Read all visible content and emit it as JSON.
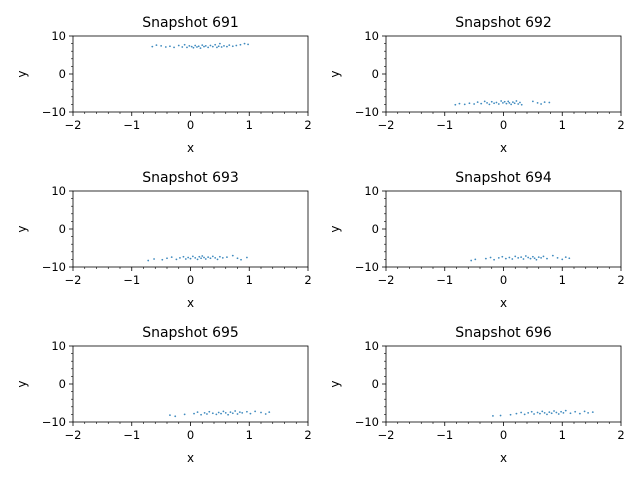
{
  "chart_data": [
    {
      "type": "scatter",
      "title": "Snapshot 691",
      "xlabel": "x",
      "ylabel": "y",
      "xlim": [
        -2,
        2
      ],
      "ylim": [
        -10,
        10
      ],
      "xticks": [
        "−2",
        "−1",
        "0",
        "1",
        "2"
      ],
      "yticks": [
        "−10",
        "0",
        "10"
      ],
      "marker_color": "#1f77b4",
      "points": [
        [
          -0.65,
          7.2
        ],
        [
          -0.58,
          7.6
        ],
        [
          -0.5,
          7.4
        ],
        [
          -0.42,
          7.1
        ],
        [
          -0.35,
          7.3
        ],
        [
          -0.28,
          7.0
        ],
        [
          -0.2,
          7.5
        ],
        [
          -0.14,
          7.1
        ],
        [
          -0.1,
          7.7
        ],
        [
          -0.06,
          7.0
        ],
        [
          -0.02,
          7.4
        ],
        [
          0.02,
          7.2
        ],
        [
          0.05,
          6.9
        ],
        [
          0.08,
          7.5
        ],
        [
          0.11,
          7.1
        ],
        [
          0.14,
          7.3
        ],
        [
          0.17,
          6.8
        ],
        [
          0.2,
          7.6
        ],
        [
          0.23,
          7.2
        ],
        [
          0.26,
          7.4
        ],
        [
          0.3,
          7.0
        ],
        [
          0.34,
          7.5
        ],
        [
          0.38,
          7.2
        ],
        [
          0.42,
          7.7
        ],
        [
          0.45,
          7.0
        ],
        [
          0.48,
          7.3
        ],
        [
          0.5,
          8.0
        ],
        [
          0.53,
          7.1
        ],
        [
          0.57,
          7.4
        ],
        [
          0.62,
          7.2
        ],
        [
          0.66,
          7.6
        ],
        [
          0.72,
          7.3
        ],
        [
          0.78,
          7.5
        ],
        [
          0.85,
          7.7
        ],
        [
          0.92,
          8.0
        ],
        [
          0.98,
          7.8
        ]
      ]
    },
    {
      "type": "scatter",
      "title": "Snapshot 692",
      "xlabel": "x",
      "ylabel": "y",
      "xlim": [
        -2,
        2
      ],
      "ylim": [
        -10,
        10
      ],
      "xticks": [
        "−2",
        "−1",
        "0",
        "1",
        "2"
      ],
      "yticks": [
        "−10",
        "0",
        "10"
      ],
      "marker_color": "#1f77b4",
      "points": [
        [
          -0.82,
          -8.1
        ],
        [
          -0.75,
          -7.8
        ],
        [
          -0.66,
          -8.0
        ],
        [
          -0.58,
          -7.7
        ],
        [
          -0.5,
          -7.9
        ],
        [
          -0.44,
          -7.4
        ],
        [
          -0.38,
          -7.8
        ],
        [
          -0.32,
          -7.2
        ],
        [
          -0.28,
          -7.6
        ],
        [
          -0.24,
          -8.0
        ],
        [
          -0.2,
          -7.3
        ],
        [
          -0.16,
          -7.7
        ],
        [
          -0.12,
          -7.5
        ],
        [
          -0.08,
          -7.9
        ],
        [
          -0.04,
          -7.1
        ],
        [
          -0.01,
          -7.6
        ],
        [
          0.02,
          -7.3
        ],
        [
          0.05,
          -7.8
        ],
        [
          0.08,
          -7.2
        ],
        [
          0.1,
          -7.6
        ],
        [
          0.13,
          -8.0
        ],
        [
          0.16,
          -7.4
        ],
        [
          0.19,
          -7.7
        ],
        [
          0.22,
          -7.1
        ],
        [
          0.25,
          -7.9
        ],
        [
          0.28,
          -7.5
        ],
        [
          0.31,
          -8.1
        ],
        [
          0.5,
          -7.2
        ],
        [
          0.58,
          -7.6
        ],
        [
          0.64,
          -7.9
        ],
        [
          0.7,
          -7.4
        ],
        [
          0.78,
          -7.5
        ]
      ]
    },
    {
      "type": "scatter",
      "title": "Snapshot 693",
      "xlabel": "x",
      "ylabel": "y",
      "xlim": [
        -2,
        2
      ],
      "ylim": [
        -10,
        10
      ],
      "xticks": [
        "−2",
        "−1",
        "0",
        "1",
        "2"
      ],
      "yticks": [
        "−10",
        "0",
        "10"
      ],
      "marker_color": "#1f77b4",
      "points": [
        [
          -0.72,
          -8.3
        ],
        [
          -0.62,
          -7.9
        ],
        [
          -0.48,
          -8.1
        ],
        [
          -0.4,
          -7.7
        ],
        [
          -0.32,
          -7.4
        ],
        [
          -0.24,
          -8.0
        ],
        [
          -0.18,
          -7.6
        ],
        [
          -0.12,
          -7.3
        ],
        [
          -0.08,
          -7.9
        ],
        [
          -0.04,
          -7.5
        ],
        [
          0.0,
          -7.8
        ],
        [
          0.04,
          -7.2
        ],
        [
          0.08,
          -7.6
        ],
        [
          0.12,
          -8.0
        ],
        [
          0.15,
          -7.3
        ],
        [
          0.18,
          -7.7
        ],
        [
          0.2,
          -7.1
        ],
        [
          0.23,
          -7.5
        ],
        [
          0.26,
          -7.9
        ],
        [
          0.3,
          -7.4
        ],
        [
          0.34,
          -7.7
        ],
        [
          0.38,
          -7.2
        ],
        [
          0.42,
          -7.6
        ],
        [
          0.46,
          -8.0
        ],
        [
          0.5,
          -7.3
        ],
        [
          0.55,
          -7.6
        ],
        [
          0.62,
          -7.4
        ],
        [
          0.72,
          -7.0
        ],
        [
          0.8,
          -7.7
        ],
        [
          0.86,
          -8.1
        ],
        [
          0.96,
          -7.5
        ]
      ]
    },
    {
      "type": "scatter",
      "title": "Snapshot 694",
      "xlabel": "x",
      "ylabel": "y",
      "xlim": [
        -2,
        2
      ],
      "ylim": [
        -10,
        10
      ],
      "xticks": [
        "−2",
        "−1",
        "0",
        "1",
        "2"
      ],
      "yticks": [
        "−10",
        "0",
        "10"
      ],
      "marker_color": "#1f77b4",
      "points": [
        [
          -0.55,
          -8.3
        ],
        [
          -0.48,
          -8.0
        ],
        [
          -0.3,
          -7.8
        ],
        [
          -0.22,
          -7.5
        ],
        [
          -0.16,
          -8.1
        ],
        [
          -0.08,
          -7.6
        ],
        [
          -0.02,
          -7.3
        ],
        [
          0.04,
          -7.8
        ],
        [
          0.1,
          -7.5
        ],
        [
          0.15,
          -7.9
        ],
        [
          0.2,
          -7.2
        ],
        [
          0.25,
          -7.6
        ],
        [
          0.3,
          -7.4
        ],
        [
          0.34,
          -7.9
        ],
        [
          0.38,
          -7.1
        ],
        [
          0.42,
          -7.5
        ],
        [
          0.46,
          -7.8
        ],
        [
          0.5,
          -7.3
        ],
        [
          0.53,
          -7.7
        ],
        [
          0.56,
          -8.1
        ],
        [
          0.6,
          -7.4
        ],
        [
          0.64,
          -7.6
        ],
        [
          0.68,
          -7.2
        ],
        [
          0.74,
          -7.8
        ],
        [
          0.84,
          -7.0
        ],
        [
          0.92,
          -7.6
        ],
        [
          1.0,
          -8.0
        ],
        [
          1.06,
          -7.4
        ],
        [
          1.12,
          -7.7
        ]
      ]
    },
    {
      "type": "scatter",
      "title": "Snapshot 695",
      "xlabel": "x",
      "ylabel": "y",
      "xlim": [
        -2,
        2
      ],
      "ylim": [
        -10,
        10
      ],
      "xticks": [
        "−2",
        "−1",
        "0",
        "1",
        "2"
      ],
      "yticks": [
        "−10",
        "0",
        "10"
      ],
      "marker_color": "#1f77b4",
      "points": [
        [
          -0.35,
          -8.2
        ],
        [
          -0.26,
          -8.5
        ],
        [
          -0.1,
          -8.0
        ],
        [
          0.06,
          -7.8
        ],
        [
          0.12,
          -7.4
        ],
        [
          0.18,
          -8.1
        ],
        [
          0.24,
          -7.6
        ],
        [
          0.28,
          -7.9
        ],
        [
          0.32,
          -7.3
        ],
        [
          0.38,
          -7.7
        ],
        [
          0.44,
          -8.0
        ],
        [
          0.48,
          -7.5
        ],
        [
          0.52,
          -7.8
        ],
        [
          0.56,
          -7.2
        ],
        [
          0.6,
          -7.6
        ],
        [
          0.64,
          -8.1
        ],
        [
          0.68,
          -7.4
        ],
        [
          0.72,
          -7.7
        ],
        [
          0.76,
          -7.1
        ],
        [
          0.8,
          -7.9
        ],
        [
          0.84,
          -7.4
        ],
        [
          0.88,
          -7.6
        ],
        [
          0.96,
          -7.3
        ],
        [
          1.02,
          -7.8
        ],
        [
          1.1,
          -7.2
        ],
        [
          1.2,
          -7.5
        ],
        [
          1.28,
          -7.9
        ],
        [
          1.34,
          -7.4
        ]
      ]
    },
    {
      "type": "scatter",
      "title": "Snapshot 696",
      "xlabel": "x",
      "ylabel": "y",
      "xlim": [
        -2,
        2
      ],
      "ylim": [
        -10,
        10
      ],
      "xticks": [
        "−2",
        "−1",
        "0",
        "1",
        "2"
      ],
      "yticks": [
        "−10",
        "0",
        "10"
      ],
      "marker_color": "#1f77b4",
      "points": [
        [
          -0.18,
          -8.4
        ],
        [
          -0.05,
          -8.3
        ],
        [
          0.12,
          -8.1
        ],
        [
          0.22,
          -7.8
        ],
        [
          0.3,
          -7.5
        ],
        [
          0.36,
          -8.0
        ],
        [
          0.42,
          -7.6
        ],
        [
          0.48,
          -7.3
        ],
        [
          0.52,
          -7.9
        ],
        [
          0.58,
          -7.5
        ],
        [
          0.62,
          -7.8
        ],
        [
          0.66,
          -7.2
        ],
        [
          0.7,
          -7.6
        ],
        [
          0.74,
          -8.0
        ],
        [
          0.78,
          -7.4
        ],
        [
          0.82,
          -7.7
        ],
        [
          0.86,
          -7.1
        ],
        [
          0.9,
          -7.5
        ],
        [
          0.94,
          -7.9
        ],
        [
          0.98,
          -7.3
        ],
        [
          1.02,
          -7.6
        ],
        [
          1.06,
          -7.0
        ],
        [
          1.14,
          -7.7
        ],
        [
          1.22,
          -7.3
        ],
        [
          1.3,
          -7.8
        ],
        [
          1.38,
          -7.2
        ],
        [
          1.44,
          -7.6
        ],
        [
          1.52,
          -7.4
        ]
      ]
    }
  ]
}
